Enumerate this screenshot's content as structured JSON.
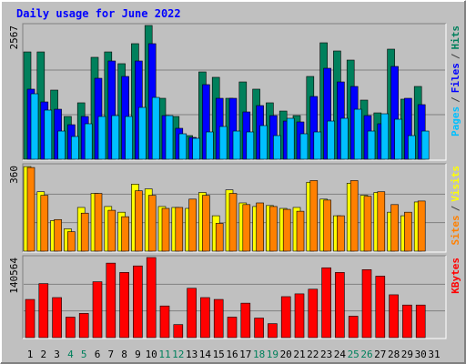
{
  "title": "Daily usage for June 2022",
  "legend_separator": "/",
  "chart_data": [
    {
      "type": "bar",
      "categories": [
        "1",
        "2",
        "3",
        "4",
        "5",
        "6",
        "7",
        "8",
        "9",
        "10",
        "11",
        "12",
        "13",
        "14",
        "15",
        "16",
        "17",
        "18",
        "19",
        "20",
        "21",
        "22",
        "23",
        "24",
        "25",
        "26",
        "27",
        "28",
        "29",
        "30",
        "31"
      ],
      "category_colors": [
        "#000000",
        "#000000",
        "#000000",
        "#00805c",
        "#00805c",
        "#000000",
        "#000000",
        "#000000",
        "#000000",
        "#000000",
        "#00805c",
        "#00805c",
        "#000000",
        "#000000",
        "#000000",
        "#000000",
        "#000000",
        "#00805c",
        "#00805c",
        "#000000",
        "#000000",
        "#000000",
        "#000000",
        "#000000",
        "#00805c",
        "#00805c",
        "#000000",
        "#000000",
        "#000000",
        "#000000",
        "#000000"
      ],
      "ylim": [
        0,
        2567
      ],
      "yticks": [
        2567
      ],
      "grid_divisions": 3,
      "series": [
        {
          "name": "Hits",
          "color": "#00805c",
          "values": [
            2060,
            2060,
            1327,
            821,
            1083,
            1956,
            2060,
            1834,
            2218,
            2567,
            1170,
            821,
            454,
            1676,
            1572,
            1170,
            1484,
            1345,
            1083,
            925,
            838,
            1589,
            2235,
            2078,
            1903,
            1135,
            890,
            2113,
            1153,
            1397,
            null
          ]
        },
        {
          "name": "Files",
          "color": "#0000ff",
          "values": [
            1345,
            1100,
            960,
            663,
            821,
            1554,
            1886,
            1589,
            1886,
            2218,
            838,
            594,
            419,
            1432,
            1170,
            1170,
            908,
            1030,
            838,
            733,
            716,
            1205,
            1746,
            1484,
            1397,
            838,
            681,
            1781,
            1170,
            1048,
            null
          ]
        },
        {
          "name": "Pages",
          "color": "#00c0ff",
          "values": [
            1257,
            943,
            541,
            437,
            681,
            821,
            838,
            821,
            995,
            1187,
            838,
            489,
            402,
            524,
            629,
            541,
            524,
            646,
            454,
            786,
            489,
            524,
            733,
            786,
            960,
            541,
            873,
            768,
            454,
            541,
            null
          ]
        }
      ]
    },
    {
      "type": "bar",
      "ylim": [
        0,
        360
      ],
      "yticks": [
        360
      ],
      "grid_divisions": 3,
      "series": [
        {
          "name": "Visits",
          "color": "#ffff00",
          "values": [
            356,
            250,
            129,
            94,
            184,
            243,
            188,
            164,
            282,
            262,
            188,
            184,
            180,
            247,
            149,
            258,
            203,
            188,
            192,
            180,
            184,
            290,
            219,
            149,
            286,
            235,
            247,
            164,
            149,
            207,
            null
          ]
        },
        {
          "name": "Sites",
          "color": "#ff8000",
          "values": [
            352,
            235,
            133,
            82,
            160,
            243,
            172,
            145,
            254,
            235,
            180,
            184,
            219,
            235,
            117,
            243,
            196,
            203,
            188,
            176,
            168,
            297,
            215,
            149,
            297,
            231,
            250,
            196,
            164,
            211,
            null
          ]
        }
      ]
    },
    {
      "type": "bar",
      "ylim": [
        0,
        140564
      ],
      "yticks": [
        140564
      ],
      "grid_divisions": 3,
      "series": [
        {
          "name": "KBytes",
          "color": "#ff0000",
          "values": [
            67012,
            94797,
            70281,
            35958,
            42496,
            98066,
            130756,
            114411,
            125853,
            140564,
            55572,
            22883,
            86625,
            70281,
            67012,
            35958,
            60476,
            34324,
            24517,
            71916,
            76820,
            84991,
            122585,
            114411,
            37592,
            119316,
            107876,
            75185,
            57206,
            57206,
            null
          ]
        }
      ]
    }
  ]
}
